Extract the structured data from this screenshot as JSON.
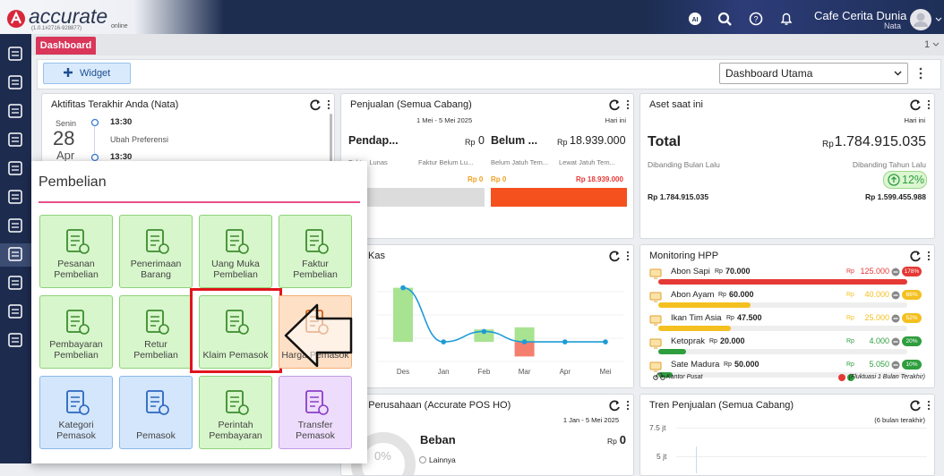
{
  "header": {
    "brand": "accurate",
    "brand_sub": "online",
    "version": "(1.0.1#2716-928877)",
    "company": "Cafe Cerita Dunia",
    "user": "Nata"
  },
  "tabs": {
    "active": "Dashboard",
    "count": "1"
  },
  "toolbar": {
    "widget_button": "Widget",
    "dashboard": "Dashboard Utama"
  },
  "activity": {
    "title": "Aktifitas Terakhir Anda (Nata)",
    "day": "Senin",
    "date": "28",
    "month": "Apr",
    "entries": [
      {
        "time": "13:30",
        "text": "Ubah Preferensi"
      },
      {
        "time": "13:30"
      }
    ]
  },
  "sales": {
    "title": "Penjualan (Semua Cabang)",
    "range": "1 Mei - 5 Mei 2025",
    "period": "Hari ini",
    "summary": [
      {
        "label": "Pendap...",
        "currency": "Rp",
        "amount": "0"
      },
      {
        "label": "Belum ...",
        "currency": "Rp",
        "amount": "18.939.000"
      }
    ],
    "columns": [
      "Faktur Lunas",
      "Faktur Belum Lu...",
      "Belum Jatuh Tem...",
      "Lewat Jatuh Tem..."
    ],
    "bar_amounts": [
      {
        "text": "Rp 0",
        "color": "#f0a020"
      },
      {
        "text": "Rp 0",
        "color": "#f0a020"
      },
      {
        "text": "Rp 18.939.000",
        "color": "#e53935"
      }
    ]
  },
  "assets": {
    "title": "Aset saat ini",
    "period": "Hari ini",
    "label": "Total",
    "currency": "Rp",
    "amount": "1.784.915.035",
    "compare_prev_month": "Dibanding Bulan Lalu",
    "compare_prev_year": "Dibanding Tahun Lalu",
    "change": "12%",
    "prev_month_amount": "Rp 1.784.915.035",
    "prev_year_amount": "Rp 1.599.455.988"
  },
  "cash": {
    "title": "Kas",
    "months": [
      "Des",
      "Jan",
      "Feb",
      "Mar",
      "Apr",
      "Mei"
    ],
    "balance": [
      5.2,
      0,
      1.0,
      0,
      0,
      0
    ],
    "inflow": [
      5.2,
      0,
      1.2,
      1.4,
      0,
      0
    ],
    "outflow": [
      0,
      0,
      0,
      -1.4,
      0,
      0
    ],
    "ylim": [
      -3.6,
      7.4
    ],
    "colors": {
      "inflow": "#a8e391",
      "outflow": "#f47f6e",
      "line": "#1e9bd7"
    }
  },
  "hpp": {
    "title": "Monitoring HPP",
    "currency": "Rp",
    "items": [
      {
        "name": "Abon Sapi",
        "price": "70.000",
        "hpp": "125.000",
        "pct": 178,
        "pct_label": "178%",
        "color": "#e53935"
      },
      {
        "name": "Abon Ayam",
        "price": "60.000",
        "hpp": "40.000",
        "pct": 66,
        "pct_label": "66%",
        "color": "#f4c020"
      },
      {
        "name": "Ikan Tim Asia",
        "price": "47.500",
        "hpp": "25.000",
        "pct": 52,
        "pct_label": "52%",
        "color": "#f4c020"
      },
      {
        "name": "Ketoprak",
        "price": "20.000",
        "hpp": "4.000",
        "pct": 20,
        "pct_label": "20%",
        "color": "#2e9e3e"
      },
      {
        "name": "Sate Madura",
        "price": "50.000",
        "hpp": "5.050",
        "pct": 10,
        "pct_label": "10%",
        "color": "#2e9e3e"
      }
    ],
    "footer_left": "Kantor Pusat",
    "footer_right": "(Fluktuasi 1 Bulan Terakhir)"
  },
  "profit": {
    "title": "an Perusahaan (Accurate POS HO)",
    "range": "1 Jan - 5 Mei 2025",
    "label": "Beban",
    "currency": "Rp",
    "amount": "0",
    "donut": "0%",
    "legend": "Lainnya"
  },
  "trend": {
    "title": "Tren Penjualan (Semua Cabang)",
    "note": "(6 bulan terakhir)",
    "yticks": [
      "7.5 jt",
      "5 jt"
    ]
  },
  "menu": {
    "title": "Pembelian",
    "items": [
      {
        "label": "Pesanan Pembelian",
        "theme": "green"
      },
      {
        "label": "Penerimaan Barang",
        "theme": "green"
      },
      {
        "label": "Uang Muka Pembelian",
        "theme": "green"
      },
      {
        "label": "Faktur Pembelian",
        "theme": "green"
      },
      {
        "label": "Pembayaran Pembelian",
        "theme": "green"
      },
      {
        "label": "Retur Pembelian",
        "theme": "green"
      },
      {
        "label": "Klaim Pemasok",
        "theme": "green",
        "highlight": true
      },
      {
        "label": "Harga Pemasok",
        "theme": "orange"
      },
      {
        "label": "Kategori Pemasok",
        "theme": "blue"
      },
      {
        "label": "Pemasok",
        "theme": "blue"
      },
      {
        "label": "Perintah Pembayaran",
        "theme": "green"
      },
      {
        "label": "Transfer Pemasok",
        "theme": "purple"
      }
    ]
  }
}
